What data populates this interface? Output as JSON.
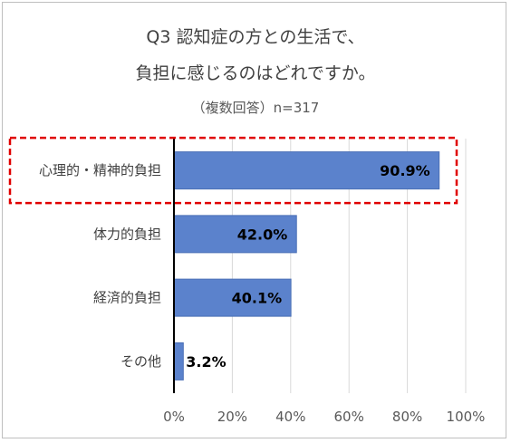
{
  "chart_data": {
    "type": "bar",
    "orientation": "horizontal",
    "title_line1": "Q3 認知症の方との生活で、",
    "title_line2": "負担に感じるのはどれですか。",
    "subtitle": "（複数回答）n=317",
    "categories": [
      "心理的・精神的負担",
      "体力的負担",
      "経済的負担",
      "その他"
    ],
    "values": [
      90.9,
      42.0,
      40.1,
      3.2
    ],
    "value_labels": [
      "90.9%",
      "42.0%",
      "40.1%",
      "3.2%"
    ],
    "xlim": [
      0,
      100
    ],
    "x_ticks": [
      "0%",
      "20%",
      "40%",
      "60%",
      "80%",
      "100%"
    ],
    "x_tick_values": [
      0,
      20,
      40,
      60,
      80,
      100
    ],
    "grid": "vertical",
    "highlight": "心理的・精神的負担",
    "colors": {
      "bar": "#5b82cc",
      "bar_stroke": "#4a6fb5",
      "highlight_box": "#e00000",
      "grid": "#d9d9d9",
      "axis": "#000000"
    }
  }
}
